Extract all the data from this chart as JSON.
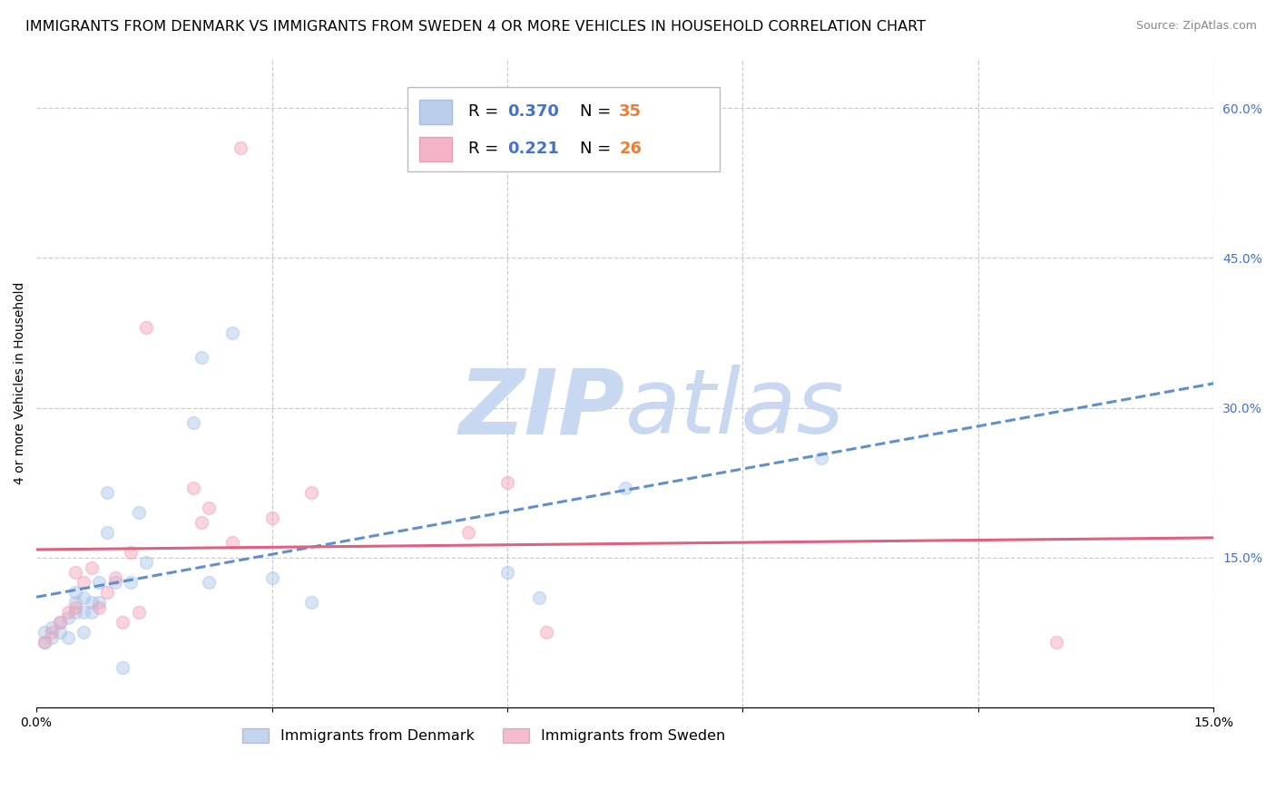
{
  "title": "IMMIGRANTS FROM DENMARK VS IMMIGRANTS FROM SWEDEN 4 OR MORE VEHICLES IN HOUSEHOLD CORRELATION CHART",
  "source": "Source: ZipAtlas.com",
  "ylabel": "4 or more Vehicles in Household",
  "xlim": [
    0.0,
    0.15
  ],
  "ylim": [
    0.0,
    0.65
  ],
  "xticks": [
    0.0,
    0.03,
    0.06,
    0.09,
    0.12,
    0.15
  ],
  "xtick_labels": [
    "0.0%",
    "",
    "",
    "",
    "",
    "15.0%"
  ],
  "yticks_right": [
    0.15,
    0.3,
    0.45,
    0.6
  ],
  "ytick_right_labels": [
    "15.0%",
    "30.0%",
    "45.0%",
    "60.0%"
  ],
  "denmark_color": "#a8c4e8",
  "sweden_color": "#f2a0b8",
  "denmark_R": 0.37,
  "denmark_N": 35,
  "sweden_R": 0.221,
  "sweden_N": 26,
  "denmark_scatter_x": [
    0.001,
    0.001,
    0.002,
    0.002,
    0.003,
    0.003,
    0.004,
    0.004,
    0.005,
    0.005,
    0.005,
    0.006,
    0.006,
    0.006,
    0.007,
    0.007,
    0.008,
    0.008,
    0.009,
    0.009,
    0.01,
    0.011,
    0.012,
    0.013,
    0.014,
    0.02,
    0.021,
    0.022,
    0.025,
    0.03,
    0.035,
    0.06,
    0.064,
    0.075,
    0.1
  ],
  "denmark_scatter_y": [
    0.065,
    0.075,
    0.07,
    0.08,
    0.075,
    0.085,
    0.07,
    0.09,
    0.095,
    0.105,
    0.115,
    0.075,
    0.095,
    0.11,
    0.095,
    0.105,
    0.105,
    0.125,
    0.175,
    0.215,
    0.125,
    0.04,
    0.125,
    0.195,
    0.145,
    0.285,
    0.35,
    0.125,
    0.375,
    0.13,
    0.105,
    0.135,
    0.11,
    0.22,
    0.25
  ],
  "sweden_scatter_x": [
    0.001,
    0.002,
    0.003,
    0.004,
    0.005,
    0.005,
    0.006,
    0.007,
    0.008,
    0.009,
    0.01,
    0.011,
    0.012,
    0.013,
    0.014,
    0.02,
    0.021,
    0.022,
    0.025,
    0.026,
    0.03,
    0.035,
    0.055,
    0.06,
    0.065,
    0.13
  ],
  "sweden_scatter_y": [
    0.065,
    0.075,
    0.085,
    0.095,
    0.1,
    0.135,
    0.125,
    0.14,
    0.1,
    0.115,
    0.13,
    0.085,
    0.155,
    0.095,
    0.38,
    0.22,
    0.185,
    0.2,
    0.165,
    0.56,
    0.19,
    0.215,
    0.175,
    0.225,
    0.075,
    0.065
  ],
  "background_color": "#ffffff",
  "grid_color": "#cccccc",
  "watermark_zip_color": "#c8d8f0",
  "watermark_atlas_color": "#c8d8f0",
  "denmark_line_color": "#6090cc",
  "sweden_line_color": "#e06080",
  "denmark_line_style": "--",
  "sweden_line_style": "-",
  "marker_size": 100,
  "marker_alpha": 0.45,
  "title_fontsize": 11.5,
  "axis_label_fontsize": 10,
  "tick_fontsize": 10,
  "legend_fontsize": 13,
  "legend_R_color": "#4472c4",
  "legend_N_color": "#ed7d31"
}
